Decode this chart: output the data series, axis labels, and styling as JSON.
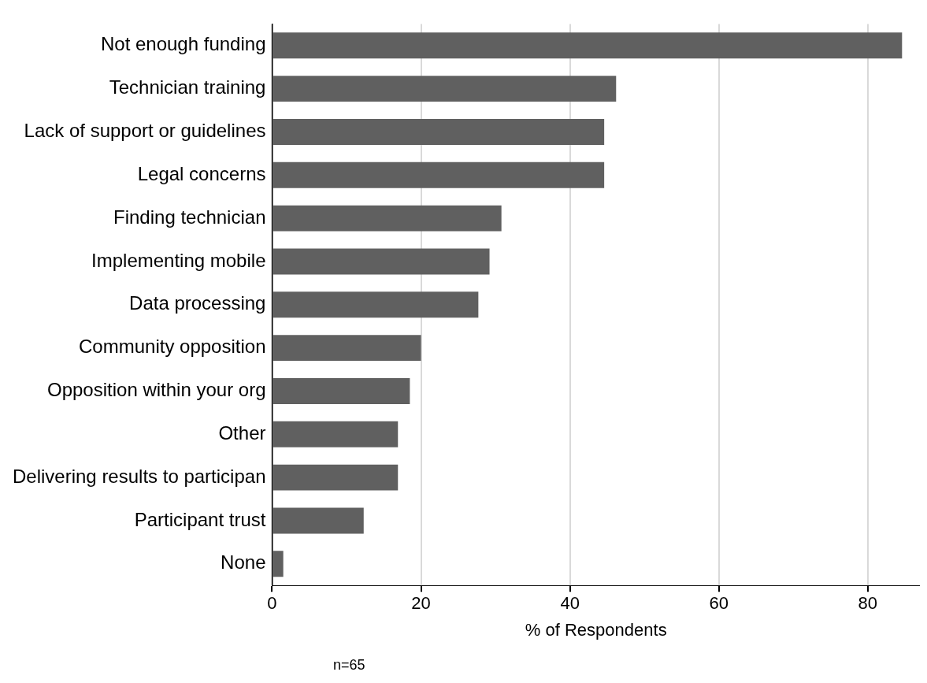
{
  "chart_data": {
    "type": "bar",
    "orientation": "horizontal",
    "categories": [
      "Not enough funding",
      "Technician training",
      "Lack of support or guidelines",
      "Legal concerns",
      "Finding technician",
      "Implementing mobile",
      "Data processing",
      "Community opposition",
      "Opposition within your org",
      "Other",
      "Delivering results to participan",
      "Participant trust",
      "None"
    ],
    "values": [
      84.6,
      46.2,
      44.6,
      44.6,
      30.8,
      29.2,
      27.7,
      20.0,
      18.5,
      16.9,
      16.9,
      12.3,
      1.5
    ],
    "color": "#606060",
    "xlim": [
      0,
      87
    ],
    "xticks": [
      0,
      20,
      40,
      60,
      80
    ],
    "xlabel": "% of Respondents",
    "grid": "x",
    "legend": false,
    "annotations": [
      "n=65"
    ]
  }
}
